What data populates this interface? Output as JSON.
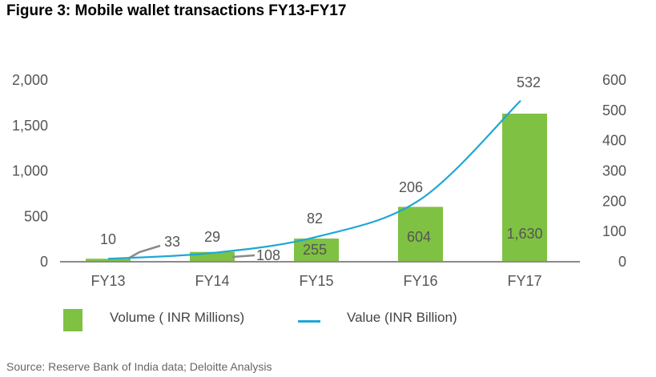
{
  "title": "Figure 3: Mobile wallet transactions FY13-FY17",
  "source": "Source: Reserve Bank of India data; Deloitte Analysis",
  "colors": {
    "bar": "#7fc142",
    "line": "#1ea7d7",
    "axis": "#8a8a8a"
  },
  "legend": {
    "bar_label": "Volume ( INR Millions)",
    "line_label": "Value (INR Billion)"
  },
  "chart_data": {
    "type": "bar",
    "categories": [
      "FY13",
      "FY14",
      "FY15",
      "FY16",
      "FY17"
    ],
    "series": [
      {
        "name": "Volume ( INR Millions)",
        "type": "bar",
        "axis": "left",
        "values": [
          33,
          108,
          255,
          604,
          1630
        ],
        "labels": [
          "33",
          "108",
          "255",
          "604",
          "1,630"
        ]
      },
      {
        "name": "Value (INR Billion)",
        "type": "line",
        "axis": "right",
        "values": [
          10,
          29,
          82,
          206,
          532
        ],
        "labels": [
          "10",
          "29",
          "82",
          "206",
          "532"
        ]
      }
    ],
    "y_left": {
      "ylim": [
        0,
        2000
      ],
      "ticks": [
        0,
        500,
        1000,
        1500,
        2000
      ],
      "tick_labels": [
        "0",
        "500",
        "1,000",
        "1,500",
        "2,000"
      ]
    },
    "y_right": {
      "ylim": [
        0,
        600
      ],
      "ticks": [
        0,
        100,
        200,
        300,
        400,
        500,
        600
      ],
      "tick_labels": [
        "0",
        "100",
        "200",
        "300",
        "400",
        "500",
        "600"
      ]
    },
    "grid": false,
    "legend_position": "bottom"
  }
}
